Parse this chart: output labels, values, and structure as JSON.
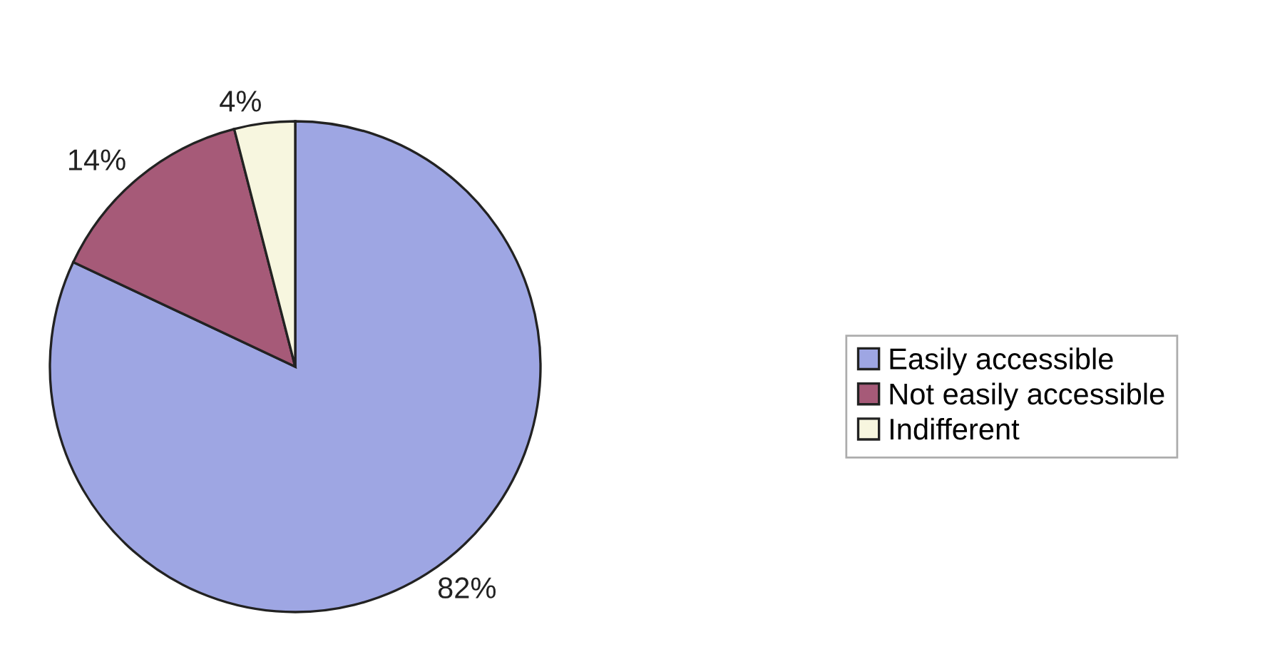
{
  "chart_data": {
    "type": "pie",
    "categories": [
      "Easily accessible",
      "Not easily accessible",
      "Indifferent"
    ],
    "values": [
      82,
      14,
      4
    ],
    "colors": [
      "#9ea6e3",
      "#a65a78",
      "#f7f6df"
    ],
    "value_labels": [
      "82%",
      "14%",
      "4%"
    ],
    "legend": "right"
  }
}
